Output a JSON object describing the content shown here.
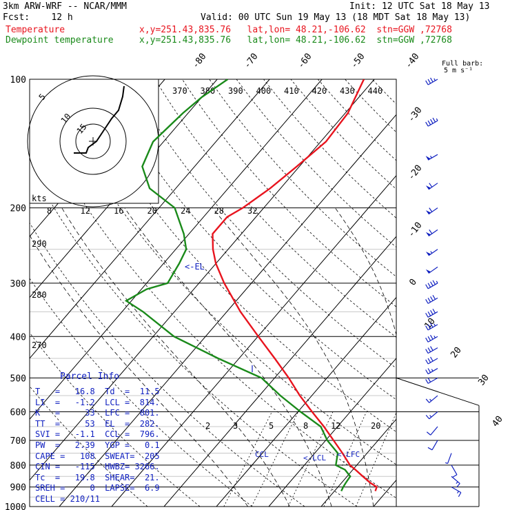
{
  "header": {
    "line1_left": "3km ARW-WRF -- NCAR/MMM",
    "line1_right": "Init: 12 UTC Sat 18 May 13",
    "line2_left": "Fcst:    12 h",
    "line2_right": "Valid: 00 UTC Sun 19 May 13 (18 MDT Sat 18 May 13)",
    "temp_label": "Temperature",
    "temp_info": "x,y=251.43,835.76   lat,lon= 48.21,-106.62  stn=GGW ,72768",
    "dew_label": "Dewpoint temperature",
    "dew_info": "x,y=251.43,835.76   lat,lon= 48.21,-106.62  stn=GGW ,72768"
  },
  "wind_barb_legend": {
    "line1": "Full barb:",
    "line2": "5 m s⁻¹"
  },
  "colors": {
    "temperature": "#e8141e",
    "dewpoint": "#1a8a1a",
    "parcel": "#1020c0",
    "axes": "#000000"
  },
  "parcel_info": {
    "title": "Parcel Info",
    "rows": [
      "T   =   16.8  Td  =  11.5",
      "LI  =   -1.2  LCL =  814.",
      "K   =     33  LFC =  801.",
      "TT  =     53  EL  =  282.",
      "SVI =   -1.1  CCL =  796.",
      "PW  =   2.39  YGP =   0.1",
      "CAPE =   108  SWEAT=  205",
      "CIN =   -115  HWBZ= 3266.",
      "Tc  =   19.8  SHEAR=  21.",
      "SREH =     0  LAPSE=  6.9",
      "CELL = 210/11"
    ]
  },
  "annotations": {
    "el": "<-EL",
    "ccl": "CCL",
    "lcl": "<-LCL",
    "lfc": "<-LFC"
  },
  "hodograph": {
    "units": "kts",
    "ring_labels": [
      "5",
      "10",
      "15"
    ],
    "speed_ticks": [
      "8",
      "12",
      "16",
      "20",
      "24",
      "28",
      "32"
    ]
  },
  "chart_data": {
    "type": "line",
    "title": "",
    "pressure_levels": [
      "100",
      "200",
      "300",
      "400",
      "500",
      "600",
      "700",
      "800",
      "900",
      "1000"
    ],
    "isotherm_labels": [
      "-80",
      "-70",
      "-60",
      "-50",
      "-40",
      "-30",
      "-20",
      "-10",
      "0",
      "10",
      "20",
      "30",
      "40"
    ],
    "theta_labels_top": [
      "370",
      "380",
      "390",
      "400",
      "410",
      "420",
      "430",
      "440"
    ],
    "theta_labels_left": [
      "290",
      "280",
      "270"
    ],
    "mixing_ratio_labels": [
      "2",
      "3",
      "5",
      "8",
      "12",
      "20"
    ],
    "series": [
      {
        "name": "Temperature",
        "pressure": [
          920,
          900,
          880,
          850,
          820,
          800,
          750,
          700,
          650,
          600,
          550,
          500,
          450,
          400,
          350,
          300,
          270,
          250,
          230,
          210,
          200,
          180,
          160,
          140,
          120,
          100
        ],
        "temp": [
          17.8,
          17.4,
          15.5,
          13.0,
          10.5,
          8.7,
          5.3,
          1.5,
          -2.6,
          -7.3,
          -12.3,
          -17.3,
          -23.2,
          -29.9,
          -37.4,
          -45.2,
          -50.0,
          -52.9,
          -55.5,
          -55.5,
          -54.0,
          -52.0,
          -50.5,
          -49.0,
          -49.5,
          -52.0
        ]
      },
      {
        "name": "Dewpoint temperature",
        "pressure": [
          920,
          900,
          880,
          850,
          820,
          800,
          750,
          700,
          650,
          600,
          550,
          500,
          450,
          400,
          350,
          330,
          310,
          300,
          270,
          250,
          230,
          200,
          180,
          160,
          140,
          120,
          110,
          100
        ],
        "temp": [
          11.3,
          11.0,
          10.8,
          10.6,
          8.5,
          6.0,
          4.4,
          0.3,
          -3.2,
          -9.5,
          -16.0,
          -22.5,
          -34.0,
          -46.0,
          -56.0,
          -61.0,
          -59.0,
          -56.0,
          -57.0,
          -58.0,
          -61.0,
          -67.0,
          -75.0,
          -80.0,
          -82.0,
          -81.0,
          -80.0,
          -78.0
        ]
      }
    ],
    "wind_barbs": [
      {
        "pressure": 100,
        "speed_kt": 35,
        "dir_deg": 240
      },
      {
        "pressure": 125,
        "speed_kt": 45,
        "dir_deg": 240
      },
      {
        "pressure": 150,
        "speed_kt": 55,
        "dir_deg": 240
      },
      {
        "pressure": 175,
        "speed_kt": 60,
        "dir_deg": 235
      },
      {
        "pressure": 200,
        "speed_kt": 60,
        "dir_deg": 235
      },
      {
        "pressure": 225,
        "speed_kt": 60,
        "dir_deg": 235
      },
      {
        "pressure": 250,
        "speed_kt": 55,
        "dir_deg": 235
      },
      {
        "pressure": 275,
        "speed_kt": 50,
        "dir_deg": 235
      },
      {
        "pressure": 300,
        "speed_kt": 45,
        "dir_deg": 240
      },
      {
        "pressure": 325,
        "speed_kt": 40,
        "dir_deg": 240
      },
      {
        "pressure": 350,
        "speed_kt": 40,
        "dir_deg": 240
      },
      {
        "pressure": 375,
        "speed_kt": 35,
        "dir_deg": 240
      },
      {
        "pressure": 400,
        "speed_kt": 35,
        "dir_deg": 240
      },
      {
        "pressure": 425,
        "speed_kt": 30,
        "dir_deg": 240
      },
      {
        "pressure": 450,
        "speed_kt": 30,
        "dir_deg": 240
      },
      {
        "pressure": 475,
        "speed_kt": 25,
        "dir_deg": 240
      },
      {
        "pressure": 500,
        "speed_kt": 20,
        "dir_deg": 240
      },
      {
        "pressure": 550,
        "speed_kt": 15,
        "dir_deg": 230
      },
      {
        "pressure": 600,
        "speed_kt": 15,
        "dir_deg": 230
      },
      {
        "pressure": 650,
        "speed_kt": 10,
        "dir_deg": 220
      },
      {
        "pressure": 700,
        "speed_kt": 10,
        "dir_deg": 210
      },
      {
        "pressure": 750,
        "speed_kt": 5,
        "dir_deg": 200
      },
      {
        "pressure": 800,
        "speed_kt": 10,
        "dir_deg": 150
      },
      {
        "pressure": 850,
        "speed_kt": 15,
        "dir_deg": 130
      },
      {
        "pressure": 900,
        "speed_kt": 15,
        "dir_deg": 120
      }
    ]
  }
}
